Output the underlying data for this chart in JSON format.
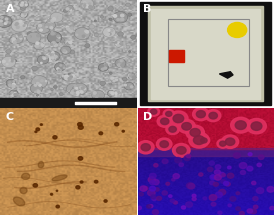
{
  "figsize": [
    2.74,
    2.15
  ],
  "dpi": 100,
  "labels": [
    "A",
    "B",
    "C",
    "D"
  ],
  "label_color": "white",
  "label_fontsize": 8,
  "label_fontweight": "bold",
  "panel_A": {
    "bg_color": "#707070",
    "scalebar_bg": "#222222"
  },
  "panel_B": {
    "bg_outer": "#7a8a70",
    "arena_color": "#c0c0a8",
    "frame_color": "#1a1a1a",
    "floor_color": "#d8d8c8",
    "inner_box_color": "#909090",
    "yellow_dot": "#e8cc00",
    "red_square": "#cc1800",
    "mouse_color": "#111111"
  },
  "panel_C": {
    "bg_color": "#c49050",
    "fiber_color": "#8a5020",
    "dark_spot_color": "#5a2800"
  },
  "panel_D": {
    "bg_top": "#c03060",
    "bg_bottom": "#2010a0",
    "cell_ring": "#ff4060",
    "cell_interior": "#a03070",
    "dense_cell": "#6040c0"
  }
}
